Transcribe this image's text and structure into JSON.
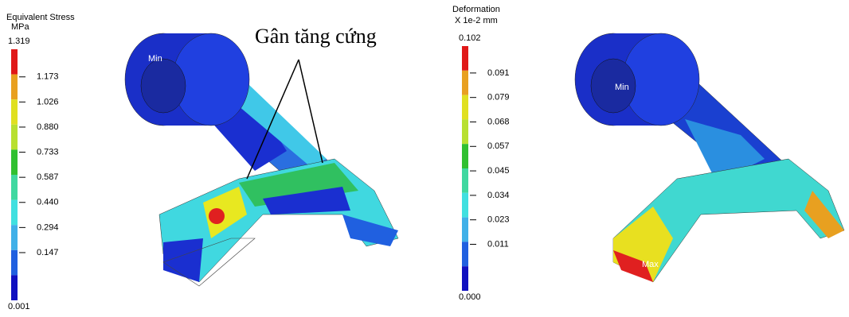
{
  "stress_legend": {
    "title": "Equivalent Stress",
    "unit": "MPa",
    "labels": [
      "1.319",
      "1.173",
      "1.026",
      "0.880",
      "0.733",
      "0.587",
      "0.440",
      "0.294",
      "0.147",
      "0.001"
    ]
  },
  "deformation_legend": {
    "title": "Deformation",
    "unit": "X 1e-2 mm",
    "labels": [
      "0.102",
      "0.091",
      "0.079",
      "0.068",
      "0.057",
      "0.045",
      "0.034",
      "0.023",
      "0.011",
      "0.000"
    ]
  },
  "annotation": "Gân tăng cứng",
  "stress_model": {
    "min_label": "Min"
  },
  "deformation_model": {
    "min_label": "Min",
    "max_label": "Max"
  }
}
